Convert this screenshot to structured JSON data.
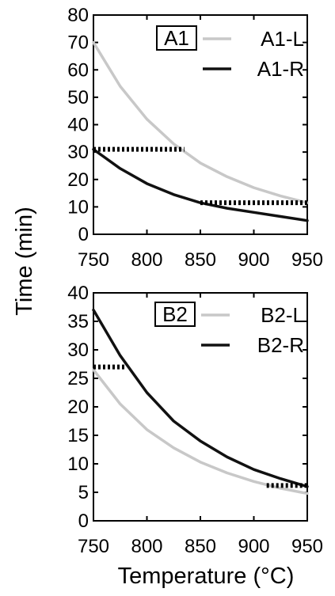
{
  "figure": {
    "ylabel": "Time (min)",
    "xlabel": "Temperature (°C)"
  },
  "chart_data": [
    {
      "type": "line",
      "panel_label": "A1",
      "xlim": [
        750,
        950
      ],
      "ylim": [
        0,
        80
      ],
      "x_ticks": [
        "750",
        "800",
        "850",
        "900",
        "950"
      ],
      "y_ticks": [
        "0",
        "10",
        "20",
        "30",
        "40",
        "50",
        "60",
        "70",
        "80"
      ],
      "grid": false,
      "legend_position": "top-right",
      "series": [
        {
          "name": "A1-L",
          "color": "#c8c8c8",
          "x": [
            750,
            775,
            800,
            825,
            850,
            875,
            900,
            925,
            950
          ],
          "values": [
            70,
            54,
            42,
            33,
            26,
            21,
            17,
            14,
            11.5
          ]
        },
        {
          "name": "A1-R",
          "color": "#111111",
          "x": [
            750,
            775,
            800,
            825,
            850,
            875,
            900,
            925,
            950
          ],
          "values": [
            31,
            24,
            18.5,
            14.5,
            11.5,
            9.5,
            8,
            6.5,
            5
          ]
        }
      ],
      "markers": [
        {
          "x_range": [
            750,
            835
          ],
          "y": 31
        },
        {
          "x_range": [
            850,
            950
          ],
          "y": 11.5
        }
      ]
    },
    {
      "type": "line",
      "panel_label": "B2",
      "xlim": [
        750,
        950
      ],
      "ylim": [
        0,
        40
      ],
      "x_ticks": [
        "750",
        "800",
        "850",
        "900",
        "950"
      ],
      "y_ticks": [
        "0",
        "5",
        "10",
        "15",
        "20",
        "25",
        "30",
        "35",
        "40"
      ],
      "grid": false,
      "legend_position": "top-right",
      "series": [
        {
          "name": "B2-L",
          "color": "#c8c8c8",
          "x": [
            750,
            775,
            800,
            825,
            850,
            875,
            900,
            925,
            950
          ],
          "values": [
            26.5,
            20.5,
            16,
            12.8,
            10.3,
            8.4,
            6.9,
            5.7,
            4.8
          ]
        },
        {
          "name": "B2-R",
          "color": "#111111",
          "x": [
            750,
            775,
            800,
            825,
            850,
            875,
            900,
            925,
            950
          ],
          "values": [
            37,
            29,
            22.5,
            17.5,
            14,
            11.2,
            9,
            7.4,
            6
          ]
        }
      ],
      "markers": [
        {
          "x_range": [
            750,
            780
          ],
          "y": 27
        },
        {
          "x_range": [
            912,
            950
          ],
          "y": 6.2
        }
      ]
    }
  ]
}
